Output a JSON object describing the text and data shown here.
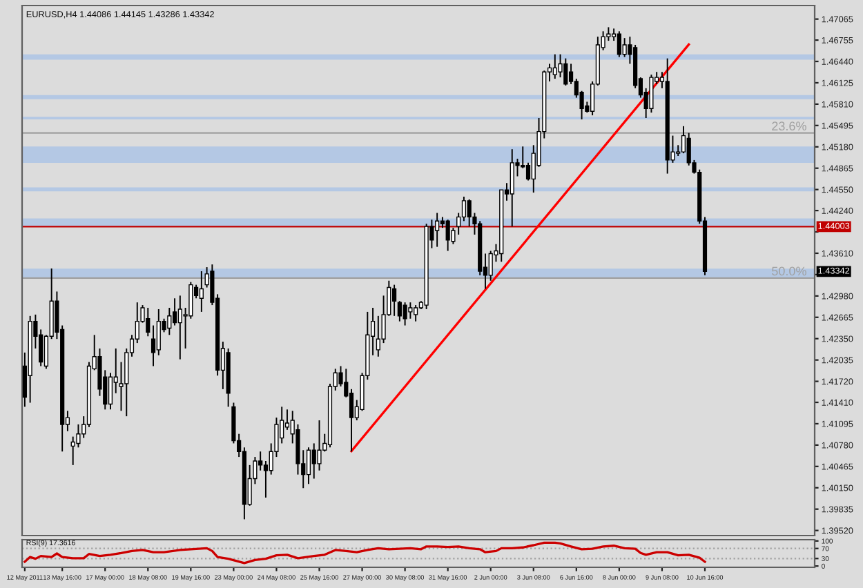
{
  "chart_data": [
    {
      "type": "candlestick",
      "title": "EURUSD,H4 1.44086 1.44145 1.43286 1.43342",
      "tick_labels": "y",
      "categories": [
        null,
        null,
        null,
        null,
        null,
        null,
        null,
        null,
        null,
        null,
        null,
        null,
        null,
        null,
        null,
        null,
        null,
        null,
        null,
        null,
        null,
        null,
        null,
        null,
        null,
        null,
        null,
        null,
        null,
        null,
        null,
        null,
        null,
        null,
        null,
        null,
        null,
        null,
        null,
        null,
        null,
        null,
        null,
        null,
        null,
        null,
        null,
        null,
        null,
        null,
        null,
        null,
        null,
        null,
        null,
        null,
        null,
        null,
        null,
        null,
        null,
        null,
        null,
        null,
        null,
        null,
        null,
        null,
        null,
        null,
        null,
        null,
        null,
        null,
        null,
        null,
        null,
        null,
        null,
        null,
        null,
        null,
        null,
        null,
        null,
        null,
        null,
        null,
        null,
        null,
        null,
        null,
        null,
        null,
        null,
        null,
        null,
        null,
        null,
        null,
        null,
        null,
        null,
        null,
        null,
        null,
        null,
        null,
        null,
        null,
        null,
        null,
        null,
        null,
        null,
        null,
        null,
        null,
        null,
        null,
        null,
        null,
        null,
        null,
        null,
        null,
        null,
        null,
        null,
        null,
        null,
        null,
        null,
        null,
        null,
        null,
        null,
        null,
        null,
        null,
        null,
        null,
        null,
        null,
        null,
        null,
        null,
        null
      ],
      "ohlc": [
        [
          1.41945,
          1.42145,
          1.41345,
          1.41485
        ],
        [
          1.41805,
          1.42685,
          1.41405,
          1.42605
        ],
        [
          1.42605,
          1.42705,
          1.42205,
          1.42385
        ],
        [
          1.42405,
          1.42485,
          1.41945,
          1.42005
        ],
        [
          1.41945,
          1.42405,
          1.41905,
          1.42385
        ],
        [
          1.42385,
          1.43385,
          1.42345,
          1.42905
        ],
        [
          1.42905,
          1.43045,
          1.42345,
          1.42445
        ],
        [
          1.42485,
          1.42545,
          1.40685,
          1.41085
        ],
        [
          1.41085,
          1.41285,
          1.40985,
          1.41185
        ],
        [
          1.40765,
          1.40905,
          1.40485,
          1.40825
        ],
        [
          1.40805,
          1.41085,
          1.40745,
          1.40945
        ],
        [
          1.40945,
          1.41205,
          1.40885,
          1.41085
        ],
        [
          1.41085,
          1.42005,
          1.41045,
          1.41945
        ],
        [
          1.41905,
          1.42405,
          1.41885,
          1.42085
        ],
        [
          1.42085,
          1.42205,
          1.41505,
          1.41605
        ],
        [
          1.41785,
          1.41885,
          1.41305,
          1.41385
        ],
        [
          1.41385,
          1.41845,
          1.41305,
          1.41785
        ],
        [
          1.41705,
          1.42205,
          1.41545,
          1.41785
        ],
        [
          1.41645,
          1.42005,
          1.41285,
          1.41685
        ],
        [
          1.41685,
          1.42205,
          1.41205,
          1.42145
        ],
        [
          1.42145,
          1.42405,
          1.42085,
          1.42345
        ],
        [
          1.42345,
          1.42885,
          1.42285,
          1.42605
        ],
        [
          1.42605,
          1.42845,
          1.42585,
          1.42805
        ],
        [
          1.42645,
          1.42805,
          1.42385,
          1.42445
        ],
        [
          1.42345,
          1.42545,
          1.41945,
          1.42145
        ],
        [
          1.42185,
          1.42785,
          1.42105,
          1.42605
        ],
        [
          1.42605,
          1.42645,
          1.42445,
          1.42485
        ],
        [
          1.42505,
          1.42805,
          1.42405,
          1.42685
        ],
        [
          1.42745,
          1.42945,
          1.42545,
          1.42585
        ],
        [
          1.42585,
          1.42985,
          1.42045,
          1.42785
        ],
        [
          1.42685,
          1.42805,
          1.42205,
          1.42705
        ],
        [
          1.42685,
          1.43185,
          1.42645,
          1.43145
        ],
        [
          1.43105,
          1.43145,
          1.42945,
          1.42985
        ],
        [
          1.42945,
          1.43345,
          1.42745,
          1.43085
        ],
        [
          1.43145,
          1.43405,
          1.43105,
          1.43305
        ],
        [
          1.43345,
          1.43445,
          1.42845,
          1.42885
        ],
        [
          1.42945,
          1.43005,
          1.41805,
          1.41885
        ],
        [
          1.41885,
          1.42305,
          1.41605,
          1.42205
        ],
        [
          1.42145,
          1.42205,
          1.41345,
          1.41545
        ],
        [
          1.41345,
          1.41405,
          1.40805,
          1.40845
        ],
        [
          1.40845,
          1.40945,
          1.40605,
          1.40685
        ],
        [
          1.40685,
          1.40745,
          1.39685,
          1.39905
        ],
        [
          1.39905,
          1.40485,
          1.39885,
          1.40285
        ],
        [
          1.40285,
          1.40605,
          1.40205,
          1.40545
        ],
        [
          1.40545,
          1.40685,
          1.40405,
          1.40485
        ],
        [
          1.40485,
          1.40545,
          1.40005,
          1.40405
        ],
        [
          1.40405,
          1.40805,
          1.40345,
          1.40685
        ],
        [
          1.40685,
          1.41185,
          1.40605,
          1.41085
        ],
        [
          1.40885,
          1.41345,
          1.40805,
          1.41145
        ],
        [
          1.41045,
          1.41305,
          1.41005,
          1.41105
        ],
        [
          1.40945,
          1.41285,
          1.40805,
          1.41145
        ],
        [
          1.41005,
          1.41085,
          1.40345,
          1.40505
        ],
        [
          1.40505,
          1.40705,
          1.40145,
          1.40345
        ],
        [
          1.40345,
          1.40745,
          1.40205,
          1.40705
        ],
        [
          1.40705,
          1.40805,
          1.40285,
          1.40505
        ],
        [
          1.40505,
          1.41145,
          1.40405,
          1.40705
        ],
        [
          1.40705,
          1.40945,
          1.40685,
          1.40805
        ],
        [
          1.40785,
          1.41685,
          1.40745,
          1.41645
        ],
        [
          1.41645,
          1.41905,
          1.41585,
          1.41845
        ],
        [
          1.41845,
          1.41945,
          1.41645,
          1.41685
        ],
        [
          1.41705,
          1.41905,
          1.41485,
          1.41505
        ],
        [
          1.41545,
          1.41605,
          1.40685,
          1.41185
        ],
        [
          1.41185,
          1.41445,
          1.41145,
          1.41345
        ],
        [
          1.41305,
          1.41845,
          1.41285,
          1.41805
        ],
        [
          1.41805,
          1.42745,
          1.41745,
          1.42405
        ],
        [
          1.42385,
          1.42805,
          1.42105,
          1.42605
        ],
        [
          1.42185,
          1.42685,
          1.42085,
          1.42345
        ],
        [
          1.42345,
          1.42985,
          1.42285,
          1.42705
        ],
        [
          1.42705,
          1.43205,
          1.42685,
          1.43105
        ],
        [
          1.43085,
          1.43145,
          1.42685,
          1.42905
        ],
        [
          1.42885,
          1.42905,
          1.42605,
          1.42685
        ],
        [
          1.42845,
          1.42885,
          1.42545,
          1.42645
        ],
        [
          1.42745,
          1.42885,
          1.42645,
          1.42805
        ],
        [
          1.42705,
          1.42845,
          1.42605,
          1.42805
        ],
        [
          1.42805,
          1.42905,
          1.42785,
          1.42885
        ],
        [
          1.42845,
          1.44045,
          1.42785,
          1.44005
        ],
        [
          1.44005,
          1.44105,
          1.43685,
          1.43805
        ],
        [
          1.43945,
          1.44205,
          1.43705,
          1.44085
        ],
        [
          1.44085,
          1.44145,
          1.43985,
          1.44045
        ],
        [
          1.44085,
          1.44105,
          1.43645,
          1.43805
        ],
        [
          1.43785,
          1.43985,
          1.43745,
          1.43945
        ],
        [
          1.44005,
          1.44205,
          1.43885,
          1.44145
        ],
        [
          1.44145,
          1.44445,
          1.44085,
          1.44385
        ],
        [
          1.44385,
          1.44405,
          1.44005,
          1.44145
        ],
        [
          1.44145,
          1.44205,
          1.43885,
          1.44045
        ],
        [
          1.44045,
          1.44085,
          1.43285,
          1.43345
        ],
        [
          1.43405,
          1.43605,
          1.43085,
          1.43285
        ],
        [
          1.43285,
          1.43645,
          1.43205,
          1.43605
        ],
        [
          1.43585,
          1.43745,
          1.43485,
          1.43645
        ],
        [
          1.43605,
          1.44545,
          1.43485,
          1.44545
        ],
        [
          1.44545,
          1.44645,
          1.44385,
          1.44485
        ],
        [
          1.44485,
          1.45145,
          1.44005,
          1.44945
        ],
        [
          1.44945,
          1.45005,
          1.44745,
          1.44905
        ],
        [
          1.44905,
          1.45185,
          1.44865,
          1.44885
        ],
        [
          1.44905,
          1.44945,
          1.44685,
          1.44705
        ],
        [
          1.44705,
          1.45205,
          1.44505,
          1.45085
        ],
        [
          1.44905,
          1.45605,
          1.44885,
          1.45405
        ],
        [
          1.45405,
          1.46305,
          1.45305,
          1.46285
        ],
        [
          1.46285,
          1.46405,
          1.46145,
          1.46345
        ],
        [
          1.46245,
          1.46545,
          1.46185,
          1.46345
        ],
        [
          1.46285,
          1.46545,
          1.46205,
          1.46405
        ],
        [
          1.46405,
          1.46485,
          1.46085,
          1.46105
        ],
        [
          1.46285,
          1.46405,
          1.46105,
          1.46145
        ],
        [
          1.46145,
          1.46185,
          1.45905,
          1.45945
        ],
        [
          1.45985,
          1.46005,
          1.45585,
          1.45745
        ],
        [
          1.45785,
          1.45845,
          1.45685,
          1.45705
        ],
        [
          1.45705,
          1.46145,
          1.45645,
          1.46105
        ],
        [
          1.46105,
          1.46805,
          1.46085,
          1.46685
        ],
        [
          1.46645,
          1.46885,
          1.46605,
          1.46805
        ],
        [
          1.46805,
          1.46945,
          1.46745,
          1.46845
        ],
        [
          1.46805,
          1.46925,
          1.46745,
          1.46845
        ],
        [
          1.46845,
          1.46885,
          1.46505,
          1.46545
        ],
        [
          1.46545,
          1.46785,
          1.46505,
          1.46685
        ],
        [
          1.46685,
          1.46805,
          1.46405,
          1.46545
        ],
        [
          1.46645,
          1.46685,
          1.46045,
          1.46085
        ],
        [
          1.46185,
          1.46205,
          1.45905,
          1.45945
        ],
        [
          1.45985,
          1.46045,
          1.45605,
          1.45745
        ],
        [
          1.45745,
          1.46245,
          1.45685,
          1.46205
        ],
        [
          1.46145,
          1.46285,
          1.46105,
          1.46205
        ],
        [
          1.46145,
          1.46285,
          1.46045,
          1.46205
        ],
        [
          1.46145,
          1.46485,
          1.44785,
          1.44985
        ],
        [
          1.44985,
          1.45345,
          1.44945,
          1.45105
        ],
        [
          1.45085,
          1.45205,
          1.45045,
          1.45105
        ],
        [
          1.45105,
          1.45485,
          1.45085,
          1.45345
        ],
        [
          1.45305,
          1.45385,
          1.44905,
          1.44945
        ],
        [
          1.44945,
          1.44985,
          1.44785,
          1.44805
        ],
        [
          1.44805,
          1.44845,
          1.44045,
          1.44085
        ],
        [
          1.44086,
          1.44145,
          1.43286,
          1.43342
        ],
        null,
        null,
        null,
        null,
        null,
        null,
        null,
        null,
        null,
        null,
        null,
        null,
        null,
        null,
        null,
        null,
        null,
        null,
        null,
        null
      ],
      "series": [
        {
          "type": "line",
          "color": "#ff0000",
          "values": [
            null,
            null,
            null,
            null,
            null,
            null,
            null,
            null,
            null,
            null,
            null,
            null,
            null,
            null,
            null,
            null,
            null,
            null,
            null,
            null,
            null,
            null,
            null,
            null,
            null,
            null,
            null,
            null,
            null,
            null,
            null,
            null,
            null,
            null,
            null,
            null,
            null,
            null,
            null,
            null,
            null,
            null,
            null,
            null,
            null,
            null,
            null,
            null,
            null,
            null,
            null,
            null,
            null,
            null,
            null,
            null,
            null,
            null,
            null,
            null,
            null,
            1.4069,
            null,
            null,
            null,
            null,
            null,
            null,
            null,
            null,
            null,
            null,
            null,
            null,
            null,
            null,
            null,
            null,
            null,
            null,
            null,
            null,
            null,
            null,
            null,
            null,
            null,
            null,
            null,
            null,
            null,
            null,
            null,
            null,
            null,
            null,
            null,
            null,
            null,
            null,
            null,
            null,
            null,
            null,
            null,
            null,
            null,
            null,
            null,
            null,
            null,
            null,
            null,
            null,
            null,
            null,
            null,
            null,
            null,
            null,
            null,
            null,
            null,
            null,
            1.4669,
            null,
            null,
            null,
            null,
            null,
            null,
            null,
            null,
            null,
            null,
            null,
            null,
            null,
            null,
            null,
            null,
            null,
            null,
            null,
            null,
            null,
            null,
            null
          ]
        }
      ],
      "ylim": [
        1.39445,
        1.47265
      ],
      "yticks": [
        {
          "value": 1.3952,
          "label": "1.39520"
        },
        {
          "value": 1.39835,
          "label": "1.39835"
        },
        {
          "value": 1.4015,
          "label": "1.40150"
        },
        {
          "value": 1.40465,
          "label": "1.40465"
        },
        {
          "value": 1.4078,
          "label": "1.40780"
        },
        {
          "value": 1.41095,
          "label": "1.41095"
        },
        {
          "value": 1.4141,
          "label": "1.41410"
        },
        {
          "value": 1.4172,
          "label": "1.41720"
        },
        {
          "value": 1.42035,
          "label": "1.42035"
        },
        {
          "value": 1.4235,
          "label": "1.42350"
        },
        {
          "value": 1.42665,
          "label": "1.42665"
        },
        {
          "value": 1.4298,
          "label": "1.42980"
        },
        {
          "value": 1.43295,
          "label": null
        },
        {
          "value": 1.4361,
          "label": "1.43610"
        },
        {
          "value": 1.43925,
          "label": null
        },
        {
          "value": 1.4424,
          "label": "1.44240"
        },
        {
          "value": 1.4455,
          "label": "1.44550"
        },
        {
          "value": 1.44865,
          "label": "1.44865"
        },
        {
          "value": 1.4518,
          "label": "1.45180"
        },
        {
          "value": 1.45495,
          "label": "1.45495"
        },
        {
          "value": 1.4581,
          "label": "1.45810"
        },
        {
          "value": 1.46125,
          "label": "1.46125"
        },
        {
          "value": 1.4644,
          "label": "1.46440"
        },
        {
          "value": 1.46755,
          "label": "1.46755"
        },
        {
          "value": 1.47065,
          "label": "1.47065"
        }
      ],
      "bands": [
        {
          "axis": "y",
          "from": 1.44944,
          "to": 1.45184,
          "color": "#b4c8e4"
        },
        {
          "axis": "y",
          "from": 1.44003,
          "to": 1.44123,
          "color": "#b4c8e4"
        },
        {
          "axis": "y",
          "from": 1.43243,
          "to": 1.43383,
          "color": "#b4c8e4"
        },
        {
          "axis": "y",
          "from": 1.46465,
          "to": 1.46545,
          "color": "#b4c8e4"
        },
        {
          "axis": "y",
          "from": 1.45884,
          "to": 1.45944,
          "color": "#b4c8e4"
        },
        {
          "axis": "y",
          "from": 1.45584,
          "to": 1.45624,
          "color": "#b4c8e4"
        },
        {
          "axis": "y",
          "from": 1.44523,
          "to": 1.44583,
          "color": "#b4c8e4"
        }
      ],
      "ref_lines": [
        {
          "axis": "y",
          "value": 1.44003,
          "label": "1.44003",
          "color": "#c00000",
          "line_style": "solid"
        },
        {
          "axis": "y",
          "value": 1.45385,
          "color": "#a0a0a0",
          "line_style": "solid"
        },
        {
          "axis": "y",
          "value": 1.43245,
          "color": "#a0a0a0",
          "line_style": "solid"
        }
      ],
      "annotations": [
        {
          "text": "23.6%",
          "y": 1.45385
        },
        {
          "text": "50.0%",
          "y": 1.43245
        },
        "1.43342"
      ]
    },
    {
      "type": "line",
      "title": "RSI(9) 17.3616",
      "categories": [
        "12 May 2011",
        null,
        null,
        null,
        null,
        null,
        null,
        "13 May 16:00",
        null,
        null,
        null,
        null,
        null,
        null,
        null,
        "17 May 00:00",
        null,
        null,
        null,
        null,
        null,
        null,
        null,
        "18 May 08:00",
        null,
        null,
        null,
        null,
        null,
        null,
        null,
        "19 May 16:00",
        null,
        null,
        null,
        null,
        null,
        null,
        null,
        "23 May 00:00",
        null,
        null,
        null,
        null,
        null,
        null,
        null,
        "24 May 08:00",
        null,
        null,
        null,
        null,
        null,
        null,
        null,
        "25 May 16:00",
        null,
        null,
        null,
        null,
        null,
        null,
        null,
        "27 May 00:00",
        null,
        null,
        null,
        null,
        null,
        null,
        null,
        "30 May 08:00",
        null,
        null,
        null,
        null,
        null,
        null,
        null,
        "31 May 16:00",
        null,
        null,
        null,
        null,
        null,
        null,
        null,
        "2 Jun 00:00",
        null,
        null,
        null,
        null,
        null,
        null,
        null,
        "3 Jun 08:00",
        null,
        null,
        null,
        null,
        null,
        null,
        null,
        "6 Jun 16:00",
        null,
        null,
        null,
        null,
        null,
        null,
        null,
        "8 Jun 00:00",
        null,
        null,
        null,
        null,
        null,
        null,
        null,
        "9 Jun 08:00",
        null,
        null,
        null,
        null,
        null,
        null,
        null,
        "10 Jun 16:00",
        null,
        null,
        null,
        null,
        null,
        null,
        null,
        null,
        null,
        null,
        null,
        null,
        null,
        null,
        null,
        null,
        null,
        null,
        null,
        null
      ],
      "series": [
        {
          "color": "#cc0000",
          "values": [
            17,
            36,
            29,
            40,
            null,
            36,
            50,
            36,
            null,
            31,
            null,
            31,
            48,
            null,
            40,
            null,
            45,
            null,
            52,
            null,
            60,
            null,
            64,
            null,
            55,
            null,
            55,
            null,
            null,
            64,
            null,
            67,
            null,
            null,
            71,
            60,
            36,
            null,
            29,
            null,
            null,
            12,
            null,
            24,
            null,
            29,
            null,
            43,
            null,
            45,
            null,
            31,
            null,
            null,
            40,
            null,
            45,
            null,
            64,
            null,
            60,
            null,
            55,
            null,
            64,
            null,
            71,
            null,
            67,
            null,
            69,
            null,
            71,
            null,
            67,
            78,
            null,
            78,
            null,
            76,
            null,
            78,
            null,
            71,
            null,
            67,
            55,
            null,
            60,
            71,
            null,
            71,
            null,
            74,
            null,
            83,
            null,
            93,
            null,
            93,
            90,
            null,
            78,
            null,
            67,
            null,
            69,
            null,
            78,
            null,
            81,
            null,
            71,
            null,
            69,
            52,
            45,
            null,
            55,
            null,
            55,
            null,
            43,
            null,
            45,
            null,
            33,
            17,
            null,
            null,
            null,
            null,
            null,
            null,
            null,
            null,
            null,
            null,
            null,
            null,
            null,
            null,
            null,
            null,
            null,
            null,
            null,
            null
          ]
        }
      ],
      "ylim": [
        -5,
        105
      ],
      "yticks": [
        0,
        30,
        70,
        100
      ],
      "ref_lines": [
        {
          "axis": "y",
          "value": 70,
          "color": "#a0a0a0",
          "line_style": "dotted"
        },
        {
          "axis": "y",
          "value": 30,
          "color": "#a0a0a0",
          "line_style": "dotted"
        }
      ]
    }
  ]
}
